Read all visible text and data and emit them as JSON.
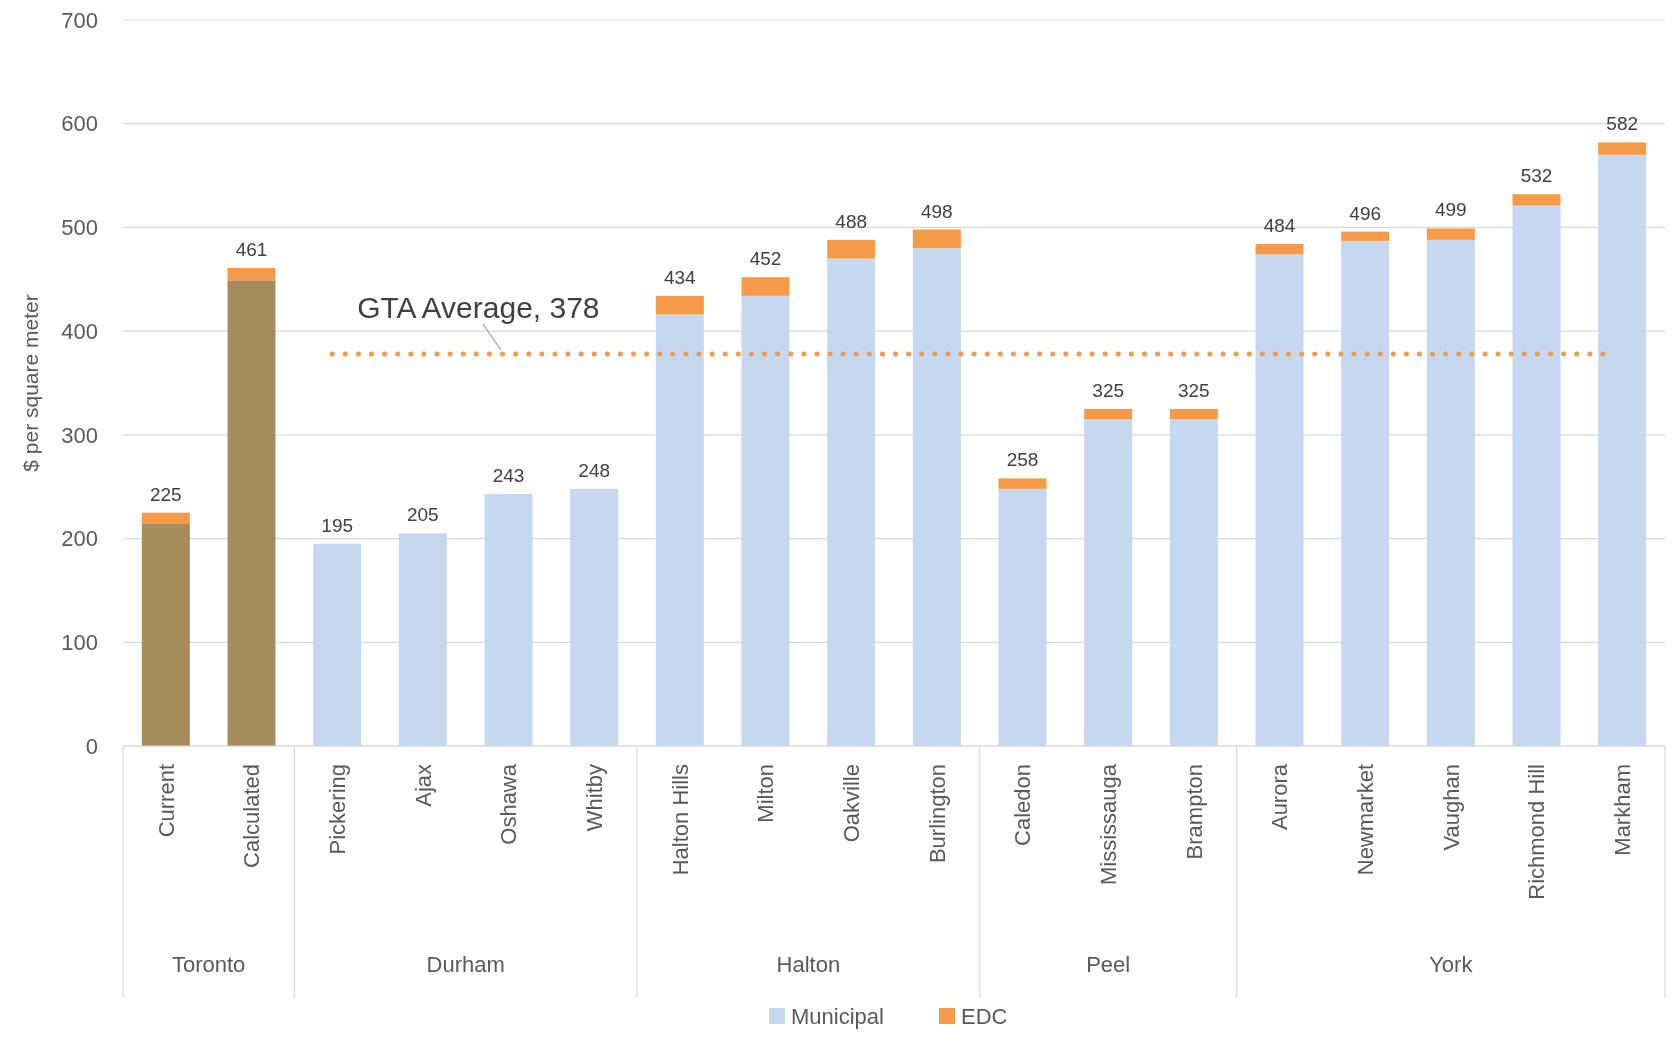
{
  "chart_data": {
    "type": "bar",
    "stacked": true,
    "ylabel": "$ per square meter",
    "categories": [
      "Current",
      "Calculated",
      "Pickering",
      "Ajax",
      "Oshawa",
      "Whitby",
      "Halton Hills",
      "Milton",
      "Oakville",
      "Burlington",
      "Caledon",
      "Mississauga",
      "Brampton",
      "Aurora",
      "Newmarket",
      "Vaughan",
      "Richmond Hill",
      "Markham"
    ],
    "series": [
      {
        "name": "Municipal",
        "color": "#c5d8f0",
        "colors": [
          "#a48c5c",
          "#a48c5c",
          "#c5d8f0",
          "#c5d8f0",
          "#c5d8f0",
          "#c5d8f0",
          "#c5d8f0",
          "#c5d8f0",
          "#c5d8f0",
          "#c5d8f0",
          "#c5d8f0",
          "#c5d8f0",
          "#c5d8f0",
          "#c5d8f0",
          "#c5d8f0",
          "#c5d8f0",
          "#c5d8f0",
          "#c5d8f0"
        ],
        "values": [
          214,
          449,
          195,
          205,
          243,
          248,
          416,
          434,
          470,
          480,
          248,
          315,
          315,
          474,
          487,
          488,
          521,
          570
        ]
      },
      {
        "name": "EDC",
        "color": "#f59a48",
        "values": [
          11,
          12,
          0,
          0,
          0,
          0,
          18,
          18,
          18,
          18,
          10,
          10,
          10,
          10,
          9,
          11,
          11,
          12
        ]
      }
    ],
    "totals": [
      "225",
      "461",
      "195",
      "205",
      "243",
      "248",
      "434",
      "452",
      "488",
      "498",
      "258",
      "325",
      "325",
      "484",
      "496",
      "499",
      "532",
      "582"
    ],
    "ylim": [
      0,
      700
    ],
    "yticks": [
      0,
      100,
      200,
      300,
      400,
      500,
      600,
      700
    ],
    "grid": "y",
    "legend": "bottom",
    "ref_lines": [
      {
        "axis": "y",
        "value": 378,
        "label": "GTA Average, 378",
        "color": "#f59a48",
        "line_style": "dotted"
      }
    ],
    "annotations": [
      "Toronto",
      "Durham",
      "Halton",
      "Peel",
      "York"
    ]
  }
}
